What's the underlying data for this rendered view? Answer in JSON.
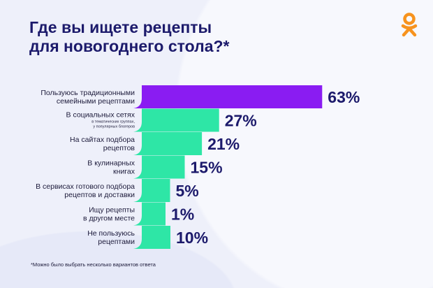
{
  "title": [
    "Где вы ищете рецепты",
    "для новогоднего стола?*"
  ],
  "footnote": "*Можно было выбрать несколько вариантов ответа",
  "colors": {
    "highlight": "#8a1cf2",
    "bar": "#2ee6a6",
    "text": "#1c1a6b",
    "logo": "#f7931e"
  },
  "chart_data": {
    "type": "bar",
    "orientation": "horizontal",
    "title": "Где вы ищете рецепты для новогоднего стола?*",
    "unit": "%",
    "categories": [
      {
        "label": [
          "Пользуюсь традиционными",
          "семейными рецептами"
        ],
        "sub": []
      },
      {
        "label": [
          "В социальных сетях"
        ],
        "sub": [
          "в тематических группах,",
          "у популярных блогеров"
        ]
      },
      {
        "label": [
          "На сайтах подбора",
          "рецептов"
        ],
        "sub": []
      },
      {
        "label": [
          "В кулинарных",
          "книгах"
        ],
        "sub": []
      },
      {
        "label": [
          "В сервисах готового подбора",
          "рецептов и доставки"
        ],
        "sub": []
      },
      {
        "label": [
          "Ищу рецепты",
          "в другом месте"
        ],
        "sub": []
      },
      {
        "label": [
          "Не пользуюсь",
          "рецептами"
        ],
        "sub": []
      }
    ],
    "values": [
      63,
      27,
      21,
      15,
      5,
      1,
      10
    ],
    "value_labels": [
      "63%",
      "27%",
      "21%",
      "15%",
      "5%",
      "1%",
      "10%"
    ],
    "highlight_index": 0
  }
}
